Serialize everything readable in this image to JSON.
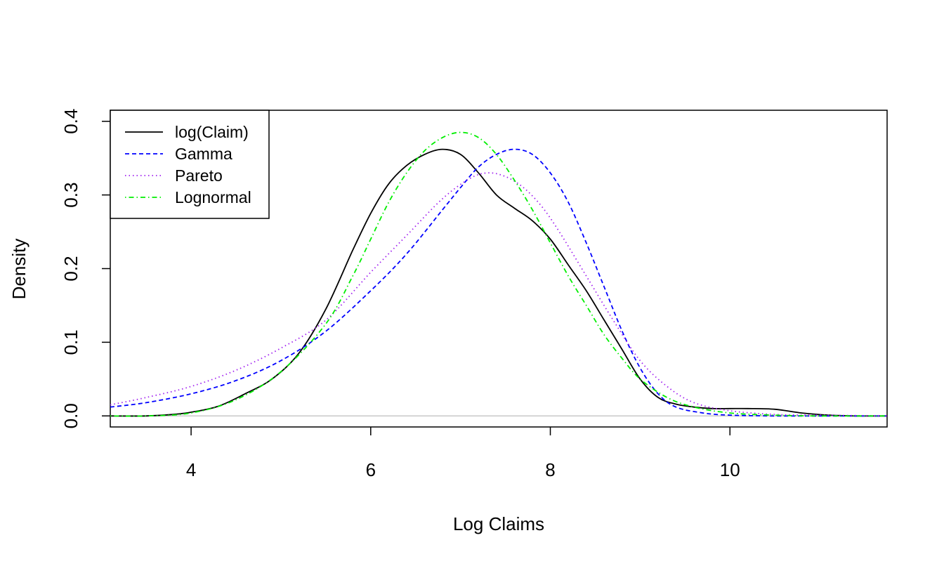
{
  "chart_data": {
    "type": "line",
    "title": "",
    "xlabel": "Log Claims",
    "ylabel": "Density",
    "xlim": [
      3.1,
      11.75
    ],
    "ylim": [
      -0.015,
      0.415
    ],
    "x_ticks": [
      4,
      6,
      8,
      10
    ],
    "x_tick_labels": [
      "4",
      "6",
      "8",
      "10"
    ],
    "y_ticks": [
      0.0,
      0.1,
      0.2,
      0.3,
      0.4
    ],
    "y_tick_labels": [
      "0.0",
      "0.1",
      "0.2",
      "0.3",
      "0.4"
    ],
    "grid": false,
    "zero_line": true,
    "legend_position": "top-left",
    "series": [
      {
        "name": "log(Claim)",
        "color": "#000000",
        "dash": "solid",
        "x": [
          3.1,
          3.5,
          3.8,
          4.0,
          4.3,
          4.6,
          4.9,
          5.2,
          5.5,
          5.8,
          6.0,
          6.2,
          6.4,
          6.6,
          6.8,
          7.0,
          7.2,
          7.4,
          7.6,
          7.8,
          8.0,
          8.2,
          8.4,
          8.6,
          8.8,
          9.0,
          9.2,
          9.4,
          9.6,
          9.8,
          10.0,
          10.2,
          10.5,
          10.8,
          11.1,
          11.4,
          11.75
        ],
        "y": [
          0.0,
          0.0,
          0.002,
          0.005,
          0.013,
          0.03,
          0.05,
          0.085,
          0.145,
          0.225,
          0.275,
          0.315,
          0.34,
          0.355,
          0.362,
          0.355,
          0.33,
          0.3,
          0.282,
          0.265,
          0.24,
          0.205,
          0.17,
          0.13,
          0.09,
          0.05,
          0.025,
          0.016,
          0.012,
          0.01,
          0.01,
          0.01,
          0.009,
          0.004,
          0.001,
          0.0,
          0.0
        ]
      },
      {
        "name": "Gamma",
        "color": "#0000ff",
        "dash": "dashed",
        "x": [
          3.1,
          3.5,
          4.0,
          4.5,
          5.0,
          5.5,
          6.0,
          6.4,
          6.8,
          7.0,
          7.2,
          7.4,
          7.6,
          7.8,
          8.0,
          8.2,
          8.4,
          8.6,
          8.8,
          9.0,
          9.2,
          9.4,
          9.7,
          10.0,
          10.5,
          11.0,
          11.75
        ],
        "y": [
          0.012,
          0.018,
          0.03,
          0.048,
          0.075,
          0.115,
          0.17,
          0.22,
          0.28,
          0.31,
          0.338,
          0.355,
          0.362,
          0.355,
          0.33,
          0.29,
          0.235,
          0.175,
          0.115,
          0.065,
          0.03,
          0.012,
          0.004,
          0.001,
          0.0,
          0.0,
          0.0
        ]
      },
      {
        "name": "Pareto",
        "color": "#a020f0",
        "dash": "dotted",
        "x": [
          3.1,
          3.5,
          4.0,
          4.5,
          5.0,
          5.5,
          6.0,
          6.4,
          6.8,
          7.1,
          7.3,
          7.5,
          7.7,
          7.9,
          8.1,
          8.4,
          8.7,
          9.0,
          9.3,
          9.6,
          10.0,
          10.5,
          11.0,
          11.75
        ],
        "y": [
          0.015,
          0.025,
          0.04,
          0.062,
          0.092,
          0.13,
          0.195,
          0.245,
          0.295,
          0.322,
          0.33,
          0.325,
          0.31,
          0.285,
          0.25,
          0.19,
          0.13,
          0.075,
          0.04,
          0.018,
          0.007,
          0.002,
          0.001,
          0.0
        ]
      },
      {
        "name": "Lognormal",
        "color": "#00ee00",
        "dash": "dotdash",
        "x": [
          3.1,
          3.5,
          4.0,
          4.5,
          5.0,
          5.5,
          5.8,
          6.0,
          6.2,
          6.4,
          6.6,
          6.8,
          7.0,
          7.2,
          7.4,
          7.6,
          7.8,
          8.0,
          8.2,
          8.4,
          8.6,
          8.8,
          9.0,
          9.3,
          9.6,
          10.0,
          10.5,
          11.0,
          11.75
        ],
        "y": [
          0.0,
          0.0,
          0.004,
          0.022,
          0.06,
          0.125,
          0.19,
          0.24,
          0.29,
          0.33,
          0.36,
          0.378,
          0.385,
          0.378,
          0.355,
          0.32,
          0.28,
          0.235,
          0.19,
          0.15,
          0.11,
          0.078,
          0.05,
          0.025,
          0.012,
          0.004,
          0.001,
          0.0,
          0.0
        ]
      }
    ]
  }
}
